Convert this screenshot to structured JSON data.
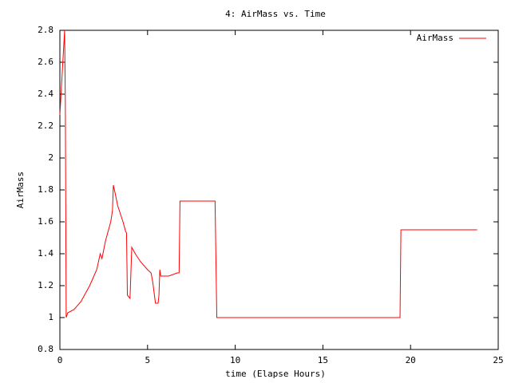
{
  "chart_data": {
    "type": "line",
    "title": "4: AirMass vs. Time",
    "x_label": "time (Elapse Hours)",
    "y_label": "AirMass",
    "x": [
      0,
      0.27,
      0.31,
      0.36,
      0.45,
      0.8,
      1.2,
      1.7,
      2.1,
      2.3,
      2.4,
      2.6,
      2.9,
      3.0,
      3.05,
      3.15,
      3.3,
      3.6,
      3.75,
      3.8,
      3.85,
      4.0,
      4.1,
      4.3,
      4.6,
      5.0,
      5.2,
      5.3,
      5.45,
      5.6,
      5.65,
      5.7,
      5.75,
      6.2,
      6.7,
      6.8,
      6.85,
      8.85,
      8.95,
      19.4,
      19.45,
      23.8
    ],
    "series": [
      {
        "name": "AirMass",
        "color": "#ff0000",
        "values": [
          2.27,
          2.8,
          2.35,
          1.0,
          1.03,
          1.05,
          1.1,
          1.2,
          1.3,
          1.4,
          1.37,
          1.48,
          1.6,
          1.67,
          1.83,
          1.78,
          1.7,
          1.6,
          1.54,
          1.53,
          1.14,
          1.12,
          1.44,
          1.4,
          1.35,
          1.3,
          1.28,
          1.22,
          1.09,
          1.09,
          1.14,
          1.3,
          1.26,
          1.26,
          1.28,
          1.28,
          1.73,
          1.73,
          1.0,
          1.0,
          1.55,
          1.55
        ]
      }
    ],
    "xlim": [
      0,
      25
    ],
    "xticks": [
      0,
      5,
      10,
      15,
      20,
      25
    ],
    "ylim": [
      0.8,
      2.8
    ],
    "yticks": [
      0.8,
      1,
      1.2,
      1.4,
      1.6,
      1.8,
      2,
      2.2,
      2.4,
      2.6,
      2.8
    ],
    "legend": "top-right"
  }
}
